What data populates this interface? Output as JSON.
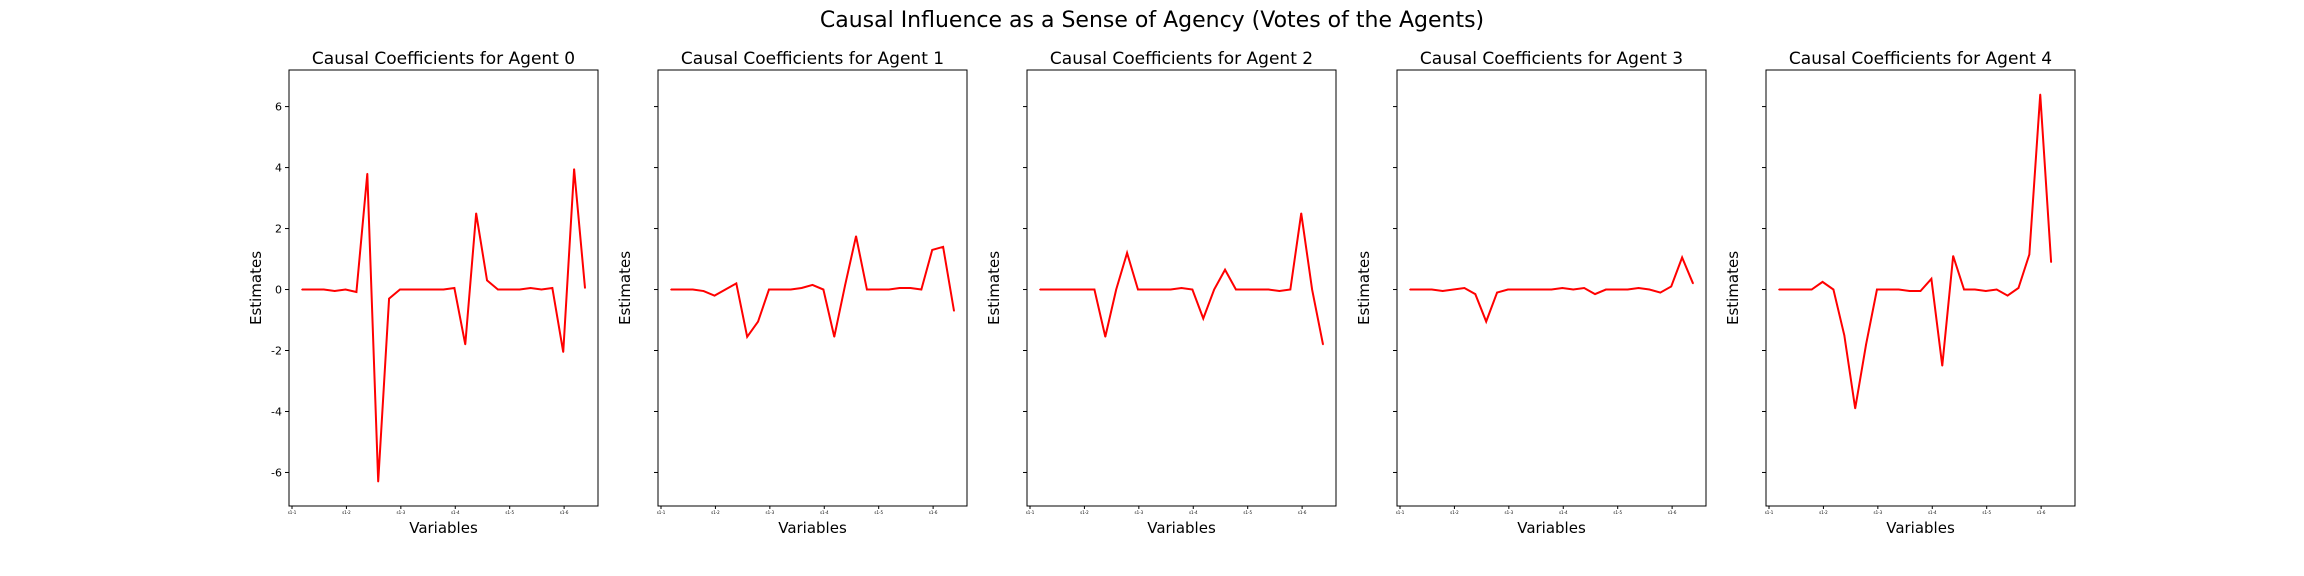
{
  "suptitle": "Causal Influence as a Sense of Agency (Votes of the Agents)",
  "colors": {
    "line": "#ff0000",
    "axis": "#000000"
  },
  "chart_data": [
    {
      "type": "line",
      "title": "Causal Coefficients for Agent 0",
      "xlabel": "Variables",
      "ylabel": "Estimates",
      "ylim": [
        -7.1,
        7.2
      ],
      "yticks": [
        -6,
        -4,
        -2,
        0,
        2,
        4,
        6
      ],
      "xtick_labels": [
        "s1-1",
        "s1-2",
        "s1-3",
        "s1-4",
        "s1-5",
        "s1-6"
      ],
      "values": [
        0,
        0,
        0,
        -0.05,
        0,
        -0.08,
        3.8,
        -6.3,
        -0.3,
        0,
        0,
        0,
        0,
        0,
        0.05,
        -1.8,
        2.5,
        0.3,
        0,
        0,
        0,
        0.05,
        0,
        0.05,
        -2.05,
        3.95,
        0.05
      ]
    },
    {
      "type": "line",
      "title": "Causal Coefficients for Agent 1",
      "xlabel": "Variables",
      "ylabel": "Estimates",
      "ylim": [
        -7.1,
        7.2
      ],
      "yticks": [
        -6,
        -4,
        -2,
        0,
        2,
        4,
        6
      ],
      "xtick_labels": [
        "s1-1",
        "s1-2",
        "s1-3",
        "s1-4",
        "s1-5",
        "s1-6"
      ],
      "values": [
        0,
        0,
        0,
        -0.05,
        -0.2,
        0,
        0.2,
        -1.55,
        -1.05,
        0,
        0,
        0,
        0.05,
        0.15,
        0,
        -1.55,
        0.15,
        1.75,
        0,
        0,
        0,
        0.05,
        0.05,
        0,
        1.3,
        1.4,
        -0.7
      ]
    },
    {
      "type": "line",
      "title": "Causal Coefficients for Agent 2",
      "xlabel": "Variables",
      "ylabel": "Estimates",
      "ylim": [
        -7.1,
        7.2
      ],
      "yticks": [
        -6,
        -4,
        -2,
        0,
        2,
        4,
        6
      ],
      "xtick_labels": [
        "s1-1",
        "s1-2",
        "s1-3",
        "s1-4",
        "s1-5",
        "s1-6"
      ],
      "values": [
        0,
        0,
        0,
        0,
        0,
        0,
        -1.55,
        0,
        1.2,
        0,
        0,
        0,
        0,
        0.05,
        0,
        -0.95,
        0,
        0.65,
        0,
        0,
        0,
        0,
        -0.05,
        0,
        2.5,
        0,
        -1.8
      ]
    },
    {
      "type": "line",
      "title": "Causal Coefficients for Agent 3",
      "xlabel": "Variables",
      "ylabel": "Estimates",
      "ylim": [
        -7.1,
        7.2
      ],
      "yticks": [
        -6,
        -4,
        -2,
        0,
        2,
        4,
        6
      ],
      "xtick_labels": [
        "s1-1",
        "s1-2",
        "s1-3",
        "s1-4",
        "s1-5",
        "s1-6"
      ],
      "values": [
        0,
        0,
        0,
        -0.05,
        0,
        0.05,
        -0.15,
        -1.05,
        -0.1,
        0,
        0,
        0,
        0,
        0,
        0.05,
        0,
        0.05,
        -0.15,
        0,
        0,
        0,
        0.05,
        0,
        -0.1,
        0.1,
        1.05,
        0.2
      ]
    },
    {
      "type": "line",
      "title": "Causal Coefficients for Agent 4",
      "xlabel": "Variables",
      "ylabel": "Estimates",
      "ylim": [
        -7.1,
        7.2
      ],
      "yticks": [
        -6,
        -4,
        -2,
        0,
        2,
        4,
        6
      ],
      "xtick_labels": [
        "s1-1",
        "s1-2",
        "s1-3",
        "s1-4",
        "s1-5",
        "s1-6"
      ],
      "values": [
        0,
        0,
        0,
        0,
        0.25,
        0,
        -1.5,
        -3.9,
        -1.8,
        0,
        0,
        0,
        -0.05,
        -0.05,
        0.35,
        -2.5,
        1.1,
        0,
        0,
        -0.05,
        0,
        -0.2,
        0.05,
        1.15,
        6.4,
        0.9
      ]
    }
  ]
}
